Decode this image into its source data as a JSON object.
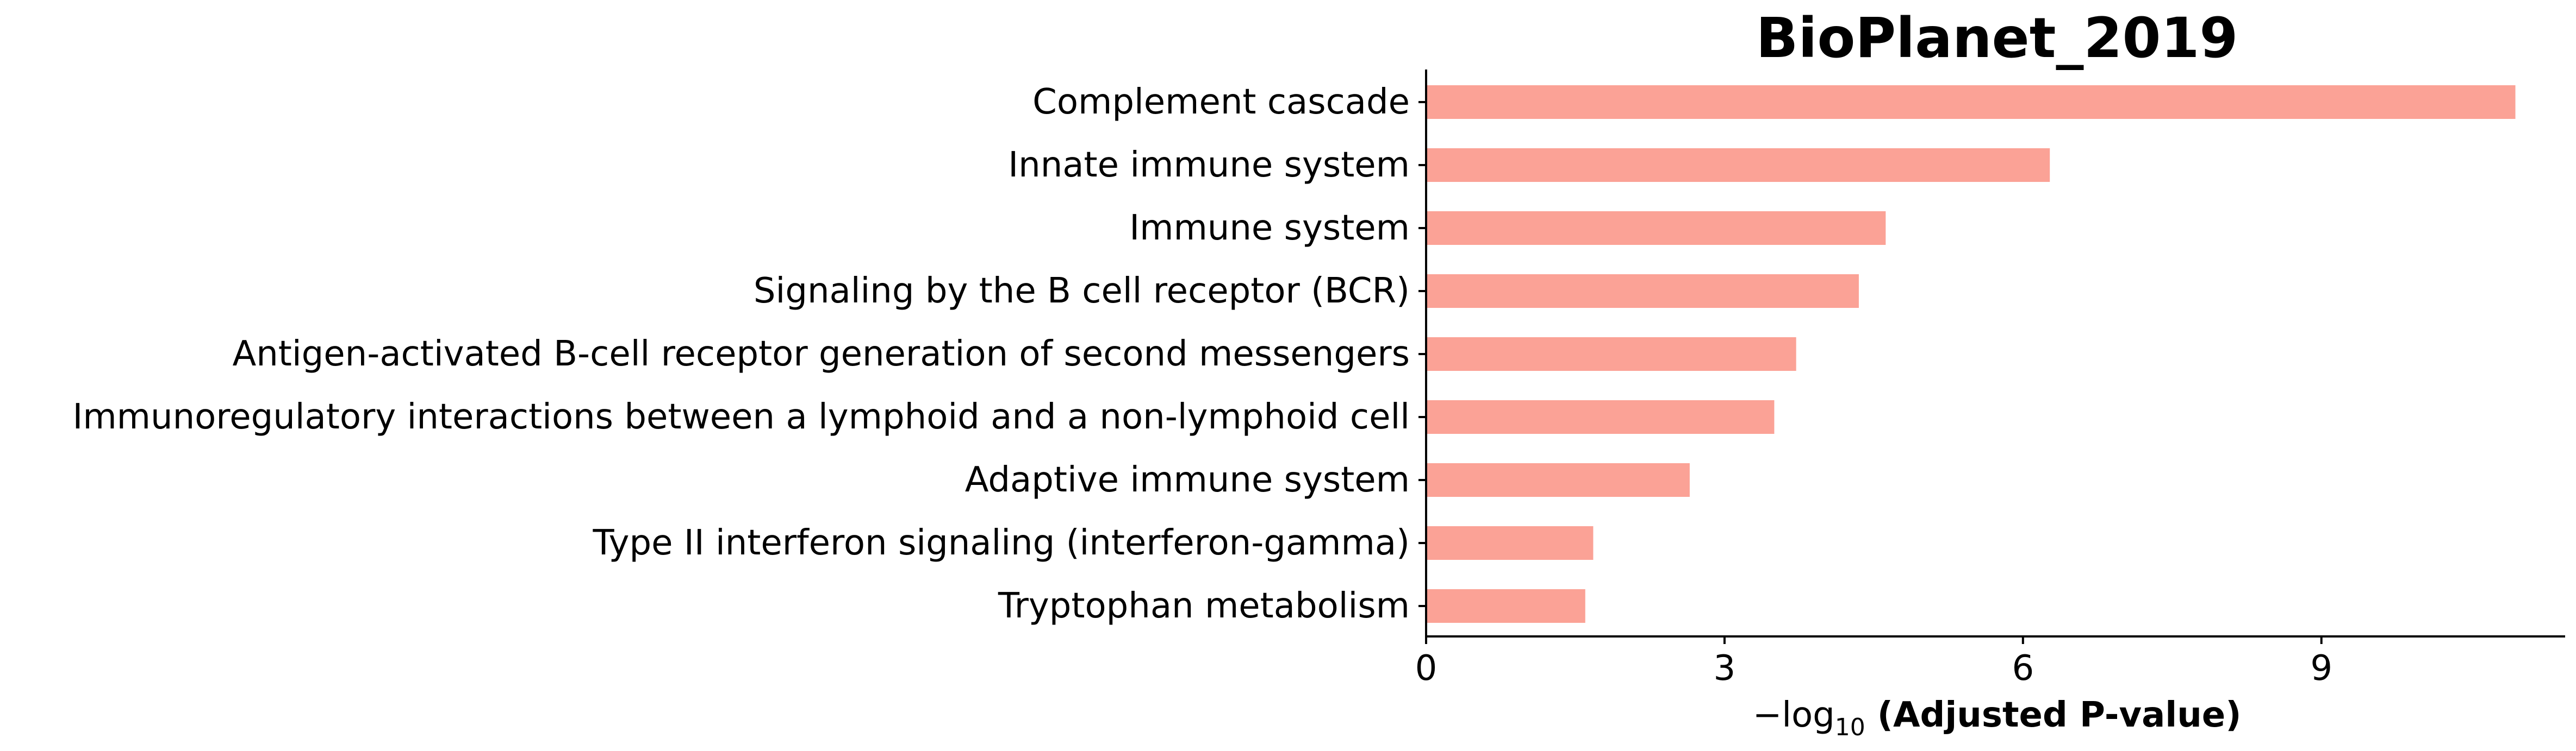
{
  "chart_data": {
    "type": "bar",
    "orientation": "horizontal",
    "title": "BioPlanet_2019",
    "xlabel_prefix": "−log",
    "xlabel_subscript": "10",
    "xlabel_suffix": "(Adjusted P-value)",
    "ylabel": "",
    "categories": [
      "Complement cascade",
      "Innate immune system",
      "Immune system",
      "Signaling by the B cell receptor (BCR)",
      "Antigen-activated B-cell receptor generation of second messengers",
      "Immunoregulatory interactions between a lymphoid and a non-lymphoid cell",
      "Adaptive immune system",
      "Type II interferon signaling (interferon-gamma)",
      "Tryptophan metabolism"
    ],
    "values": [
      10.95,
      6.27,
      4.62,
      4.35,
      3.72,
      3.5,
      2.65,
      1.68,
      1.6
    ],
    "xlim": [
      0,
      11.45
    ],
    "xticks": [
      "0",
      "3",
      "6",
      "9"
    ],
    "xtick_values": [
      0,
      3,
      6,
      9
    ],
    "grid": false,
    "bar_color": "#fba296"
  }
}
